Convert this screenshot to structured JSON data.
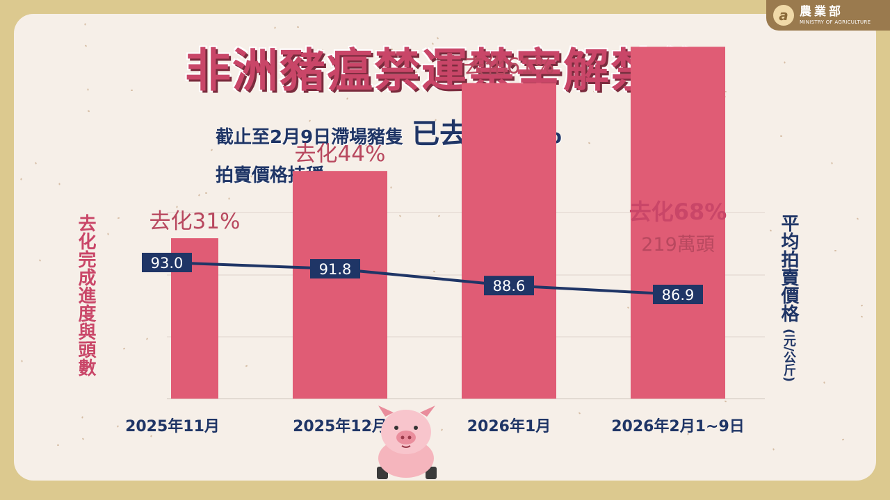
{
  "logo": {
    "name": "農業部",
    "name_en": "MINISTRY OF AGRICULTURE",
    "mark": "a"
  },
  "title": "非洲豬瘟禁運禁宰解禁後",
  "subtitle": {
    "prefix": "截止至2月9日滯場豬隻",
    "highlight": "已去化68%"
  },
  "subtitle2": "拍賣價格持穩",
  "y_left_label": "去化完成進度與頭數",
  "y_right_label": "平均拍賣價格",
  "y_right_unit": "(元/公斤)",
  "colors": {
    "bar": "#e05c75",
    "line": "#1f3566",
    "accent": "#c94668",
    "navy": "#1f3566"
  },
  "chart_data": {
    "type": "bar",
    "categories": [
      "2025年11月",
      "2025年12月",
      "2026年1月",
      "2026年2月1~9日"
    ],
    "series": [
      {
        "name": "去化完成進度",
        "values": [
          31,
          44,
          61,
          68
        ],
        "unit": "%",
        "labels": [
          "去化31%",
          "去化44%",
          "去化61%",
          "去化68%"
        ]
      },
      {
        "name": "平均拍賣價格",
        "type": "line",
        "values": [
          93.0,
          91.8,
          88.6,
          86.9
        ],
        "labels": [
          "93.0",
          "91.8",
          "88.6",
          "86.9"
        ]
      }
    ],
    "annotations": [
      {
        "category": "2026年2月1~9日",
        "text": "219萬頭"
      }
    ],
    "ylabel_left": "去化完成進度與頭數",
    "ylabel_right": "平均拍賣價格(元/公斤)"
  }
}
